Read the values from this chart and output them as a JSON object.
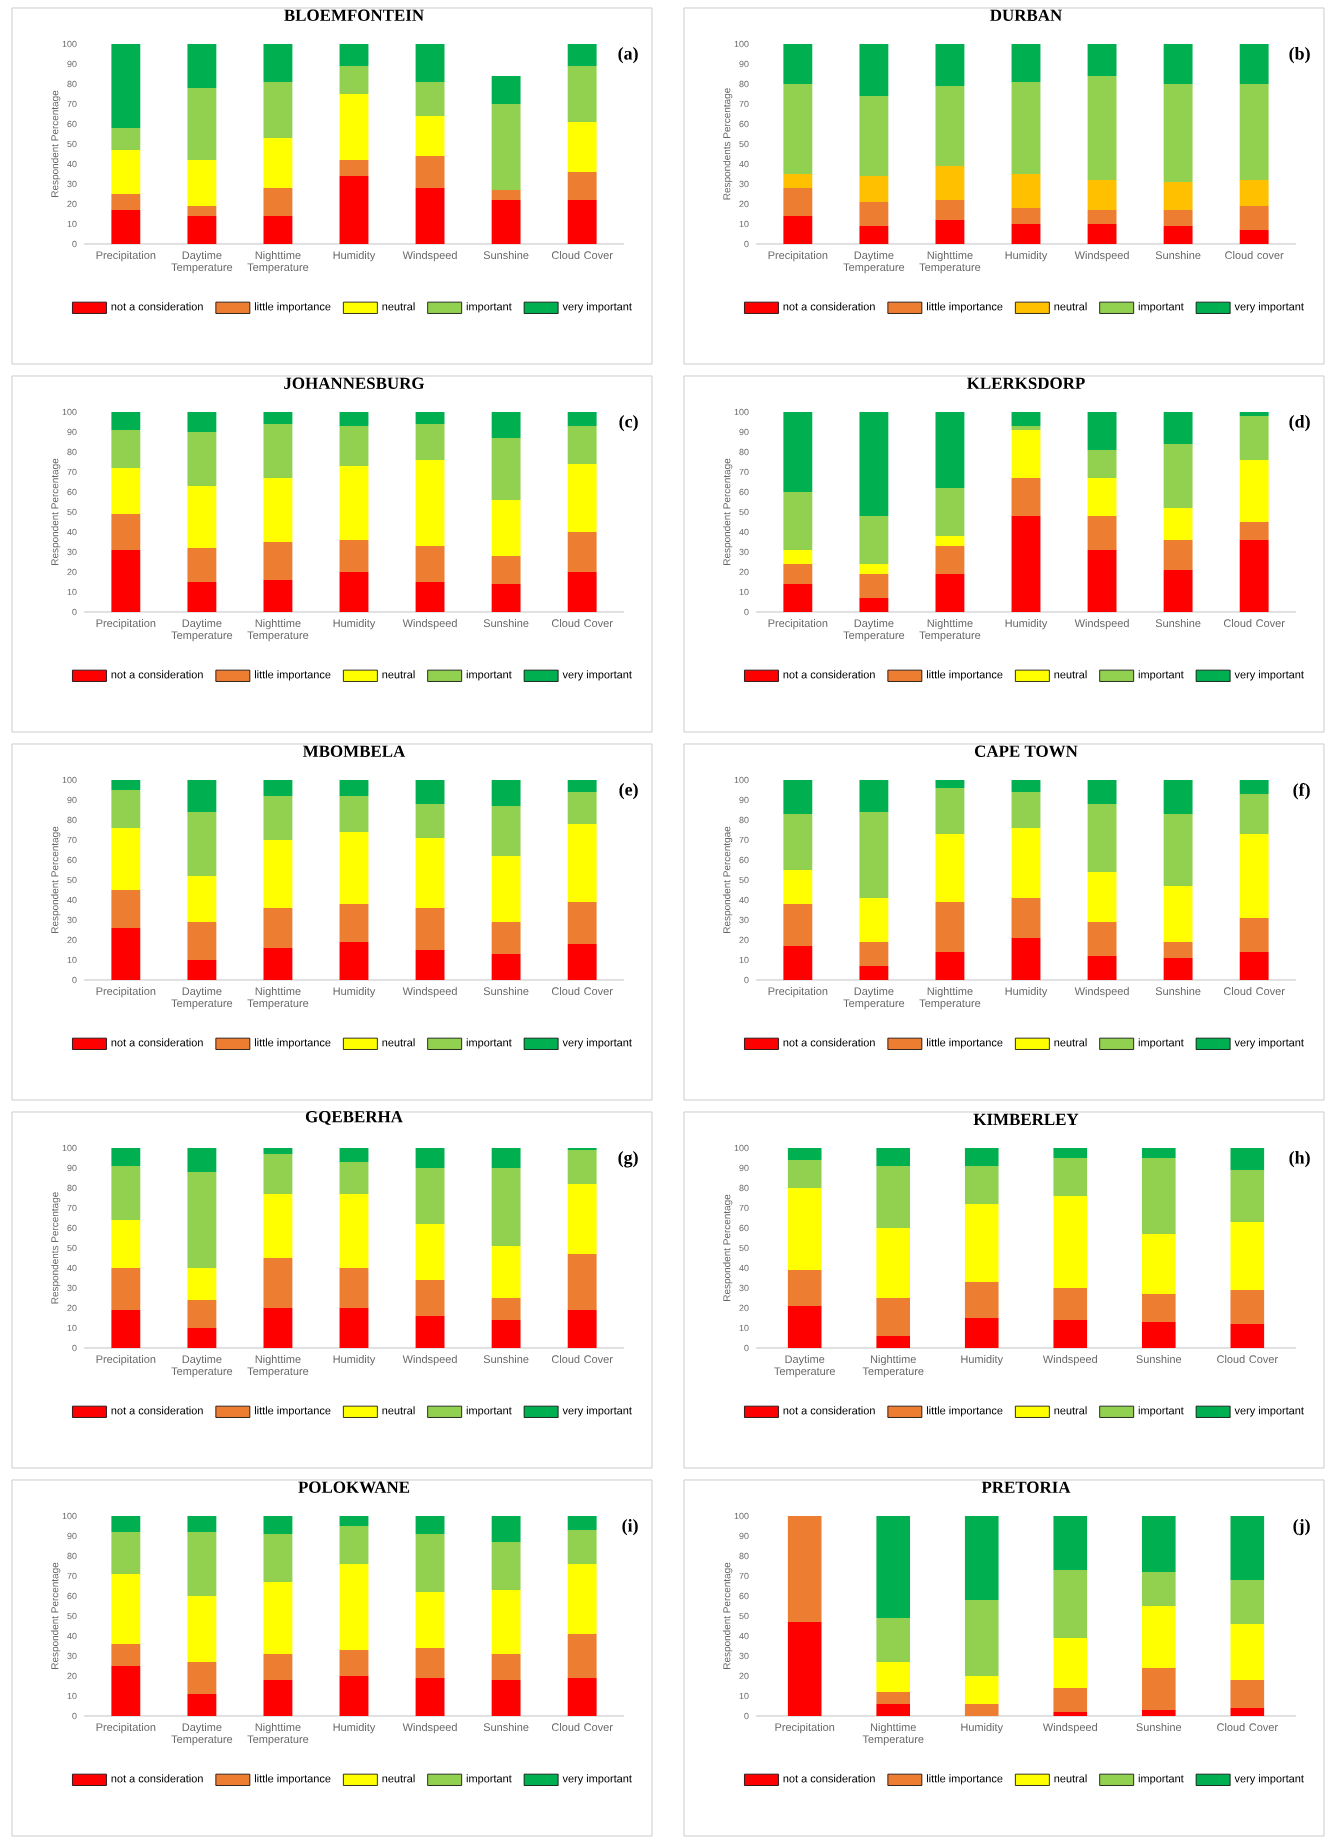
{
  "chart_data": [
    {
      "type": "bar",
      "stacked": true,
      "title": "BLOEMFONTEIN",
      "ylabel": "Respondent Percentage",
      "annotations": [
        "(a)"
      ],
      "legend": "bottom",
      "ylim": [
        0,
        100
      ],
      "yticks": [
        0,
        10,
        20,
        30,
        40,
        50,
        60,
        70,
        80,
        90,
        100
      ],
      "categories": [
        "Precipitation",
        "Daytime Temperature",
        "Nighttime Temperature",
        "Humidity",
        "Windspeed",
        "Sunshine",
        "Cloud Cover"
      ],
      "series": [
        {
          "name": "not a consideration",
          "color": "#ff0000",
          "values": [
            17,
            14,
            14,
            34,
            28,
            22,
            22
          ]
        },
        {
          "name": "little importance",
          "color": "#ed7d31",
          "values": [
            8,
            5,
            14,
            8,
            16,
            5,
            14
          ]
        },
        {
          "name": "neutral",
          "color": "#ffff00",
          "values": [
            22,
            23,
            25,
            33,
            20,
            0,
            25
          ]
        },
        {
          "name": "important",
          "color": "#92d050",
          "values": [
            11,
            36,
            28,
            14,
            17,
            43,
            28
          ]
        },
        {
          "name": "very important",
          "color": "#00b050",
          "values": [
            42,
            22,
            19,
            11,
            19,
            14,
            11
          ]
        }
      ]
    },
    {
      "type": "bar",
      "stacked": true,
      "title": "DURBAN",
      "ylabel": "Respondents Percentage",
      "annotations": [
        "(b)"
      ],
      "legend": "bottom",
      "ylim": [
        0,
        100
      ],
      "yticks": [
        0,
        10,
        20,
        30,
        40,
        50,
        60,
        70,
        80,
        90,
        100
      ],
      "categories": [
        "Precipitation",
        "Daytime Temperature",
        "Nighttime Temperature",
        "Humidity",
        "Windspeed",
        "Sunshine",
        "Cloud cover"
      ],
      "series": [
        {
          "name": "not a consideration",
          "color": "#ff0000",
          "values": [
            14,
            9,
            12,
            10,
            10,
            9,
            7
          ]
        },
        {
          "name": "little importance",
          "color": "#ed7d31",
          "values": [
            14,
            12,
            10,
            8,
            7,
            8,
            12
          ]
        },
        {
          "name": "neutral",
          "color": "#ffc000",
          "values": [
            7,
            13,
            17,
            17,
            15,
            14,
            13
          ]
        },
        {
          "name": "important",
          "color": "#92d050",
          "values": [
            45,
            40,
            40,
            46,
            52,
            49,
            48
          ]
        },
        {
          "name": "very important",
          "color": "#00b050",
          "values": [
            20,
            26,
            21,
            19,
            16,
            20,
            20
          ]
        }
      ]
    },
    {
      "type": "bar",
      "stacked": true,
      "title": "JOHANNESBURG",
      "ylabel": "Respondent  Percentage",
      "annotations": [
        "(c)"
      ],
      "legend": "bottom",
      "ylim": [
        0,
        100
      ],
      "yticks": [
        0,
        10,
        20,
        30,
        40,
        50,
        60,
        70,
        80,
        90,
        100
      ],
      "categories": [
        "Precipitation",
        "Daytime Temperature",
        "Nighttime Temperature",
        "Humidity",
        "Windspeed",
        "Sunshine",
        "Cloud Cover"
      ],
      "series": [
        {
          "name": "not a consideration",
          "color": "#ff0000",
          "values": [
            31,
            15,
            16,
            20,
            15,
            14,
            20
          ]
        },
        {
          "name": "little importance",
          "color": "#ed7d31",
          "values": [
            18,
            17,
            19,
            16,
            18,
            14,
            20
          ]
        },
        {
          "name": "neutral",
          "color": "#ffff00",
          "values": [
            23,
            31,
            32,
            37,
            43,
            28,
            34
          ]
        },
        {
          "name": "important",
          "color": "#92d050",
          "values": [
            19,
            27,
            27,
            20,
            18,
            31,
            19
          ]
        },
        {
          "name": "very important",
          "color": "#00b050",
          "values": [
            9,
            10,
            6,
            7,
            6,
            13,
            7
          ]
        }
      ]
    },
    {
      "type": "bar",
      "stacked": true,
      "title": "KLERKSDORP",
      "ylabel": "Respondent Percentage",
      "annotations": [
        "(d)"
      ],
      "legend": "bottom",
      "ylim": [
        0,
        100
      ],
      "yticks": [
        0,
        10,
        20,
        30,
        40,
        50,
        60,
        70,
        80,
        90,
        100
      ],
      "categories": [
        "Precipitation",
        "Daytime Temperature",
        "Nighttime Temperature",
        "Humidity",
        "Windspeed",
        "Sunshine",
        "Cloud Cover"
      ],
      "series": [
        {
          "name": "not a consideration",
          "color": "#ff0000",
          "values": [
            14,
            7,
            19,
            48,
            31,
            21,
            36
          ]
        },
        {
          "name": "little importance",
          "color": "#ed7d31",
          "values": [
            10,
            12,
            14,
            19,
            17,
            15,
            9
          ]
        },
        {
          "name": "neutral",
          "color": "#ffff00",
          "values": [
            7,
            5,
            5,
            24,
            19,
            16,
            31
          ]
        },
        {
          "name": "important",
          "color": "#92d050",
          "values": [
            29,
            24,
            24,
            2,
            14,
            32,
            22
          ]
        },
        {
          "name": "very important",
          "color": "#00b050",
          "values": [
            40,
            52,
            38,
            7,
            19,
            16,
            2
          ]
        }
      ]
    },
    {
      "type": "bar",
      "stacked": true,
      "title": "MBOMBELA",
      "ylabel": "Respondent Percentage",
      "annotations": [
        "(e)"
      ],
      "legend": "bottom",
      "ylim": [
        0,
        100
      ],
      "yticks": [
        0,
        10,
        20,
        30,
        40,
        50,
        60,
        70,
        80,
        90,
        100
      ],
      "categories": [
        "Precipitation",
        "Daytime Temperature",
        "Nighttime Temperature",
        "Humidity",
        "Windspeed",
        "Sunshine",
        "Cloud Cover"
      ],
      "series": [
        {
          "name": "not a consideration",
          "color": "#ff0000",
          "values": [
            26,
            10,
            16,
            19,
            15,
            13,
            18
          ]
        },
        {
          "name": "little importance",
          "color": "#ed7d31",
          "values": [
            19,
            19,
            20,
            19,
            21,
            16,
            21
          ]
        },
        {
          "name": "neutral",
          "color": "#ffff00",
          "values": [
            31,
            23,
            34,
            36,
            35,
            33,
            39
          ]
        },
        {
          "name": "important",
          "color": "#92d050",
          "values": [
            19,
            32,
            22,
            18,
            17,
            25,
            16
          ]
        },
        {
          "name": "very important",
          "color": "#00b050",
          "values": [
            5,
            16,
            8,
            8,
            12,
            13,
            6
          ]
        }
      ]
    },
    {
      "type": "bar",
      "stacked": true,
      "title": "CAPE TOWN",
      "ylabel": "Respondent Percentgae",
      "annotations": [
        "(f)"
      ],
      "legend": "bottom",
      "ylim": [
        0,
        100
      ],
      "yticks": [
        0,
        10,
        20,
        30,
        40,
        50,
        60,
        70,
        80,
        90,
        100
      ],
      "categories": [
        "Precipitation",
        "Daytime Temperature",
        "Nighttime Temperature",
        "Humidity",
        "Windspeed",
        "Sunshine",
        "Cloud Cover"
      ],
      "series": [
        {
          "name": "not a consideration",
          "color": "#ff0000",
          "values": [
            17,
            7,
            14,
            21,
            12,
            11,
            14
          ]
        },
        {
          "name": "little importance",
          "color": "#ed7d31",
          "values": [
            21,
            12,
            25,
            20,
            17,
            8,
            17
          ]
        },
        {
          "name": "neutral",
          "color": "#ffff00",
          "values": [
            17,
            22,
            34,
            35,
            25,
            28,
            42
          ]
        },
        {
          "name": "important",
          "color": "#92d050",
          "values": [
            28,
            43,
            23,
            18,
            34,
            36,
            20
          ]
        },
        {
          "name": "very important",
          "color": "#00b050",
          "values": [
            17,
            16,
            4,
            6,
            12,
            17,
            7
          ]
        }
      ]
    },
    {
      "type": "bar",
      "stacked": true,
      "title": "GQEBERHA",
      "ylabel": "Respondents Percentage",
      "annotations": [
        "(g)"
      ],
      "legend": "bottom",
      "ylim": [
        0,
        100
      ],
      "yticks": [
        0,
        10,
        20,
        30,
        40,
        50,
        60,
        70,
        80,
        90,
        100
      ],
      "categories": [
        "Precipitation",
        "Daytime Temperature",
        "Nighttime Temperature",
        "Humidity",
        "Windspeed",
        "Sunshine",
        "Cloud Cover"
      ],
      "series": [
        {
          "name": "not a consideration",
          "color": "#ff0000",
          "values": [
            19,
            10,
            20,
            20,
            16,
            14,
            19
          ]
        },
        {
          "name": "little importance",
          "color": "#ed7d31",
          "values": [
            21,
            14,
            25,
            20,
            18,
            11,
            28
          ]
        },
        {
          "name": "neutral",
          "color": "#ffff00",
          "values": [
            24,
            16,
            32,
            37,
            28,
            26,
            35
          ]
        },
        {
          "name": "important",
          "color": "#92d050",
          "values": [
            27,
            48,
            20,
            16,
            28,
            39,
            17
          ]
        },
        {
          "name": "very important",
          "color": "#00b050",
          "values": [
            9,
            12,
            3,
            7,
            10,
            10,
            1
          ]
        }
      ]
    },
    {
      "type": "bar",
      "stacked": true,
      "title": "KIMBERLEY",
      "ylabel": "Respondent Percentage",
      "annotations": [
        "(h)"
      ],
      "legend": "bottom",
      "ylim": [
        0,
        100
      ],
      "yticks": [
        0,
        10,
        20,
        30,
        40,
        50,
        60,
        70,
        80,
        90,
        100
      ],
      "categories": [
        "Daytime Temperature",
        "Nighttime Temperature",
        "Humidity",
        "Windspeed",
        "Sunshine",
        "Cloud Cover"
      ],
      "series": [
        {
          "name": "not a consideration",
          "color": "#ff0000",
          "values": [
            21,
            6,
            15,
            14,
            13,
            12
          ]
        },
        {
          "name": "little importance",
          "color": "#ed7d31",
          "values": [
            18,
            19,
            18,
            16,
            14,
            17
          ]
        },
        {
          "name": "neutral",
          "color": "#ffff00",
          "values": [
            41,
            35,
            39,
            46,
            30,
            34
          ]
        },
        {
          "name": "important",
          "color": "#92d050",
          "values": [
            14,
            31,
            19,
            19,
            38,
            26
          ]
        },
        {
          "name": "very important",
          "color": "#00b050",
          "values": [
            6,
            9,
            9,
            5,
            5,
            11
          ]
        }
      ]
    },
    {
      "type": "bar",
      "stacked": true,
      "title": "POLOKWANE",
      "ylabel": "Respondent Percentage",
      "annotations": [
        "(i)"
      ],
      "legend": "bottom",
      "ylim": [
        0,
        100
      ],
      "yticks": [
        0,
        10,
        20,
        30,
        40,
        50,
        60,
        70,
        80,
        90,
        100
      ],
      "categories": [
        "Precipitation",
        "Daytime Temperature",
        "Nighttime Temperature",
        "Humidity",
        "Windspeed",
        "Sunshine",
        "Cloud Cover"
      ],
      "series": [
        {
          "name": "not a consideration",
          "color": "#ff0000",
          "values": [
            25,
            11,
            18,
            20,
            19,
            18,
            19
          ]
        },
        {
          "name": "little importance",
          "color": "#ed7d31",
          "values": [
            11,
            16,
            13,
            13,
            15,
            13,
            22
          ]
        },
        {
          "name": "neutral",
          "color": "#ffff00",
          "values": [
            35,
            33,
            36,
            43,
            28,
            32,
            35
          ]
        },
        {
          "name": "important",
          "color": "#92d050",
          "values": [
            21,
            32,
            24,
            19,
            29,
            24,
            17
          ]
        },
        {
          "name": "very important",
          "color": "#00b050",
          "values": [
            8,
            8,
            9,
            5,
            9,
            13,
            7
          ]
        }
      ]
    },
    {
      "type": "bar",
      "stacked": true,
      "title": "PRETORIA",
      "ylabel": "Respondent Percentage",
      "annotations": [
        "(j)"
      ],
      "legend": "bottom",
      "ylim": [
        0,
        100
      ],
      "yticks": [
        0,
        10,
        20,
        30,
        40,
        50,
        60,
        70,
        80,
        90,
        100
      ],
      "categories": [
        "Precipitation",
        "Nighttime Temperature",
        "Humidity",
        "Windspeed",
        "Sunshine",
        "Cloud Cover"
      ],
      "series": [
        {
          "name": "not a consideration",
          "color": "#ff0000",
          "values": [
            47,
            6,
            0,
            2,
            3,
            4
          ]
        },
        {
          "name": "little importance",
          "color": "#ed7d31",
          "values": [
            53,
            6,
            6,
            12,
            21,
            14
          ]
        },
        {
          "name": "neutral",
          "color": "#ffff00",
          "values": [
            0,
            15,
            14,
            25,
            31,
            28
          ]
        },
        {
          "name": "important",
          "color": "#92d050",
          "values": [
            0,
            22,
            38,
            34,
            17,
            22
          ]
        },
        {
          "name": "very important",
          "color": "#00b050",
          "values": [
            0,
            51,
            42,
            27,
            28,
            32
          ]
        }
      ]
    }
  ]
}
